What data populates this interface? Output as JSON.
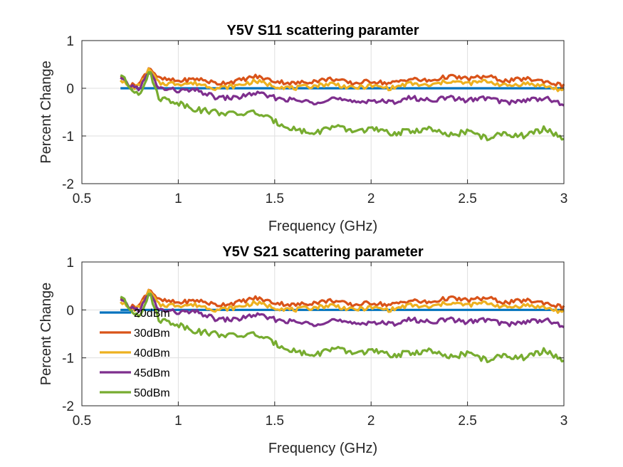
{
  "chart_data": [
    {
      "type": "line",
      "title": "Y5V S11 scattering paramter",
      "xlabel": "Frequency (GHz)",
      "ylabel": "Percent Change",
      "xlim": [
        0.5,
        3
      ],
      "ylim": [
        -2,
        1
      ],
      "xticks": [
        "0.5",
        "1",
        "1.5",
        "2",
        "2.5",
        "3"
      ],
      "yticks": [
        "-2",
        "-1",
        "0",
        "1"
      ],
      "grid": true,
      "legend": null,
      "x": [
        0.7,
        0.75,
        0.8,
        0.85,
        0.9,
        1.0,
        1.1,
        1.2,
        1.3,
        1.4,
        1.5,
        1.6,
        1.7,
        1.8,
        1.9,
        2.0,
        2.1,
        2.2,
        2.3,
        2.4,
        2.5,
        2.6,
        2.7,
        2.8,
        2.9,
        3.0
      ],
      "series": [
        {
          "color": "#0072BD",
          "values": [
            0,
            0,
            0,
            0,
            0,
            0,
            0,
            0,
            0,
            0,
            0,
            0,
            0,
            0,
            0,
            0,
            0,
            0,
            0,
            0,
            0,
            0,
            0,
            0,
            0,
            0
          ]
        },
        {
          "color": "#D95319",
          "values": [
            0.25,
            0.05,
            0.1,
            0.45,
            0.2,
            0.15,
            0.2,
            0.1,
            0.15,
            0.25,
            0.15,
            0.1,
            0.15,
            0.2,
            0.1,
            0.15,
            0.1,
            0.2,
            0.15,
            0.25,
            0.2,
            0.25,
            0.15,
            0.2,
            0.15,
            0.05
          ]
        },
        {
          "color": "#EDB120",
          "values": [
            0.2,
            0.0,
            0.05,
            0.4,
            0.1,
            0.1,
            0.1,
            0.0,
            0.05,
            0.15,
            0.05,
            0.0,
            0.05,
            0.1,
            0.0,
            0.05,
            0.0,
            0.1,
            0.05,
            0.15,
            0.1,
            0.15,
            0.05,
            0.1,
            0.05,
            -0.05
          ]
        },
        {
          "color": "#7E2F8E",
          "values": [
            0.2,
            0.05,
            0.0,
            0.35,
            0.0,
            -0.05,
            -0.05,
            -0.2,
            -0.2,
            -0.1,
            -0.2,
            -0.25,
            -0.3,
            -0.2,
            -0.3,
            -0.25,
            -0.3,
            -0.2,
            -0.25,
            -0.2,
            -0.25,
            -0.2,
            -0.3,
            -0.25,
            -0.2,
            -0.35
          ]
        },
        {
          "color": "#77AC30",
          "values": [
            0.3,
            0.0,
            -0.1,
            0.35,
            -0.2,
            -0.3,
            -0.45,
            -0.5,
            -0.55,
            -0.5,
            -0.7,
            -0.85,
            -0.95,
            -0.8,
            -0.9,
            -0.85,
            -0.95,
            -0.9,
            -0.85,
            -1.0,
            -0.9,
            -1.05,
            -0.95,
            -1.0,
            -0.85,
            -1.05
          ]
        }
      ]
    },
    {
      "type": "line",
      "title": "Y5V S21 scattering parameter",
      "xlabel": "Frequency (GHz)",
      "ylabel": "Percent Change",
      "xlim": [
        0.5,
        3
      ],
      "ylim": [
        -2,
        1
      ],
      "xticks": [
        "0.5",
        "1",
        "1.5",
        "2",
        "2.5",
        "3"
      ],
      "yticks": [
        "-2",
        "-1",
        "0",
        "1"
      ],
      "grid": true,
      "legend": "bottom-left",
      "x": [
        0.7,
        0.75,
        0.8,
        0.85,
        0.9,
        1.0,
        1.1,
        1.2,
        1.3,
        1.4,
        1.5,
        1.6,
        1.7,
        1.8,
        1.9,
        2.0,
        2.1,
        2.2,
        2.3,
        2.4,
        2.5,
        2.6,
        2.7,
        2.8,
        2.9,
        3.0
      ],
      "series": [
        {
          "name": "20dBm",
          "color": "#0072BD",
          "values": [
            0,
            0,
            0,
            0,
            0,
            0,
            0,
            0,
            0,
            0,
            0,
            0,
            0,
            0,
            0,
            0,
            0,
            0,
            0,
            0,
            0,
            0,
            0,
            0,
            0,
            0
          ]
        },
        {
          "name": "30dBm",
          "color": "#D95319",
          "values": [
            0.25,
            0.05,
            0.1,
            0.45,
            0.2,
            0.15,
            0.2,
            0.1,
            0.15,
            0.25,
            0.15,
            0.1,
            0.15,
            0.2,
            0.1,
            0.15,
            0.1,
            0.2,
            0.15,
            0.25,
            0.2,
            0.25,
            0.15,
            0.2,
            0.15,
            0.05
          ]
        },
        {
          "name": "40dBm",
          "color": "#EDB120",
          "values": [
            0.2,
            0.0,
            0.05,
            0.4,
            0.1,
            0.1,
            0.1,
            0.0,
            0.05,
            0.15,
            0.05,
            0.0,
            0.05,
            0.1,
            0.0,
            0.05,
            0.0,
            0.1,
            0.05,
            0.15,
            0.1,
            0.15,
            0.05,
            0.1,
            0.05,
            -0.05
          ]
        },
        {
          "name": "45dBm",
          "color": "#7E2F8E",
          "values": [
            0.2,
            0.05,
            0.0,
            0.35,
            0.0,
            -0.05,
            -0.05,
            -0.2,
            -0.2,
            -0.1,
            -0.2,
            -0.25,
            -0.3,
            -0.2,
            -0.3,
            -0.25,
            -0.3,
            -0.2,
            -0.25,
            -0.2,
            -0.25,
            -0.2,
            -0.3,
            -0.25,
            -0.2,
            -0.35
          ]
        },
        {
          "name": "50dBm",
          "color": "#77AC30",
          "values": [
            0.3,
            0.0,
            -0.1,
            0.35,
            -0.2,
            -0.3,
            -0.45,
            -0.5,
            -0.55,
            -0.5,
            -0.7,
            -0.85,
            -0.95,
            -0.8,
            -0.9,
            -0.85,
            -0.95,
            -0.9,
            -0.85,
            -1.0,
            -0.9,
            -1.05,
            -0.95,
            -1.0,
            -0.85,
            -1.05
          ]
        }
      ]
    }
  ]
}
